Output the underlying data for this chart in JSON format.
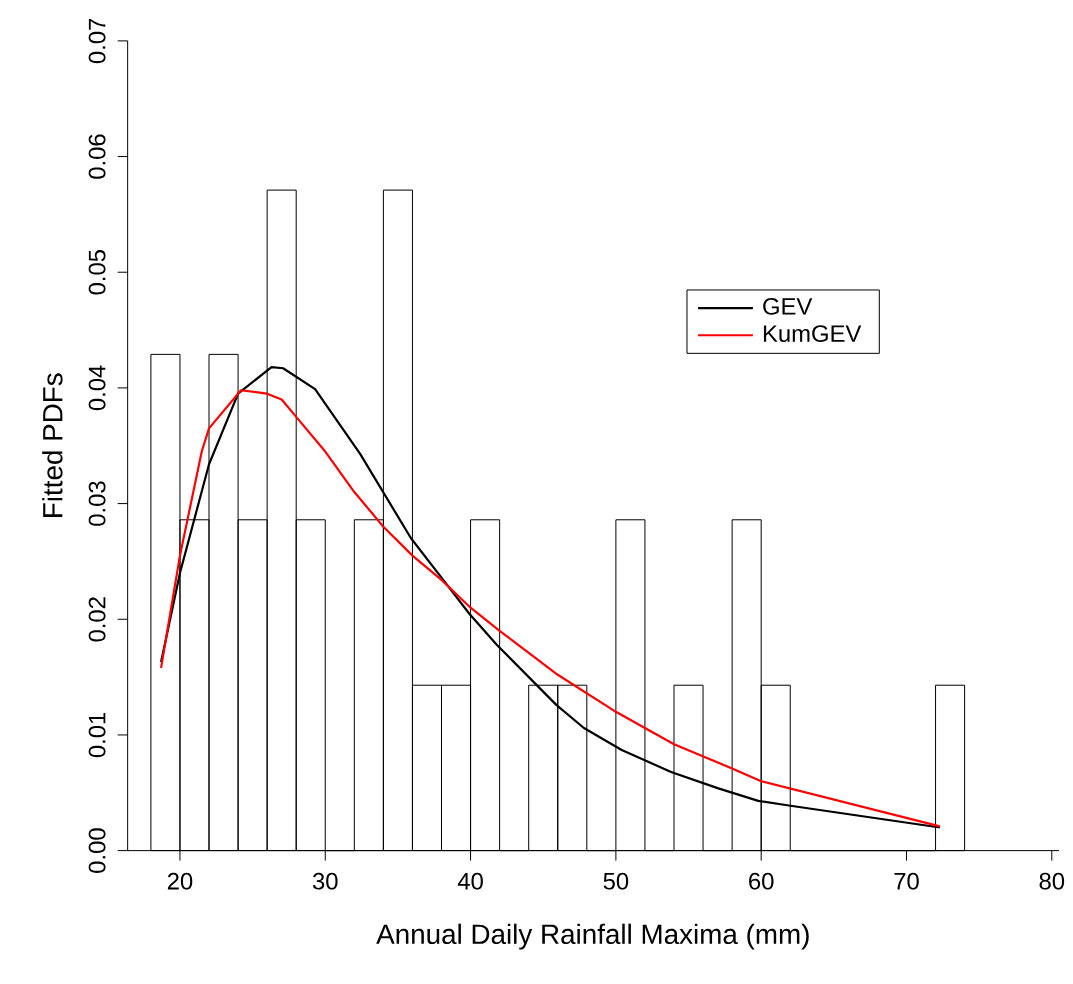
{
  "chart_data": {
    "type": "histogram",
    "xlabel": "Annual Daily Rainfall Maxima (mm)",
    "ylabel": "Fitted PDFs",
    "bins": [
      18,
      20,
      22,
      24,
      26,
      28,
      30,
      32,
      34,
      36,
      38,
      40,
      42,
      44,
      46,
      48,
      50,
      52,
      54,
      56,
      58,
      60,
      62,
      64,
      66,
      68,
      70,
      72,
      74
    ],
    "values": [
      0.0429,
      0.0286,
      0.0429,
      0.0286,
      0.0571,
      0.0286,
      0,
      0.0286,
      0.0571,
      0.0143,
      0.0143,
      0.0286,
      0,
      0.0143,
      0.0143,
      0,
      0.0286,
      0,
      0.0143,
      0,
      0.0286,
      0.0143,
      0,
      0,
      0,
      0,
      0,
      0.0143
    ],
    "series": [
      {
        "name": "GEV",
        "type": "line",
        "color": "#000000",
        "x": [
          18.7,
          20,
          22,
          24,
          26.3,
          27.1,
          29.3,
          32.4,
          35.9,
          38,
          39.9,
          41.8,
          45.9,
          47.8,
          50.4,
          53.8,
          57,
          59.8,
          61.9,
          72.3
        ],
        "values": [
          0.0163,
          0.024,
          0.0334,
          0.0395,
          0.0418,
          0.0417,
          0.0399,
          0.0343,
          0.027,
          0.0236,
          0.0205,
          0.0178,
          0.0126,
          0.0106,
          0.0087,
          0.0068,
          0.0054,
          0.0043,
          0.0039,
          0.002
        ]
      },
      {
        "name": "KumGEV",
        "type": "line",
        "color": "#ff0000",
        "x": [
          18.7,
          20,
          21.5,
          22,
          24.2,
          26,
          27,
          28,
          30,
          32,
          34,
          36,
          38,
          40,
          42,
          46,
          50,
          54,
          58,
          60,
          72.3
        ],
        "values": [
          0.0158,
          0.0255,
          0.0345,
          0.0365,
          0.0398,
          0.0395,
          0.039,
          0.0375,
          0.0345,
          0.031,
          0.028,
          0.0255,
          0.0234,
          0.021,
          0.019,
          0.0152,
          0.012,
          0.0092,
          0.0071,
          0.006,
          0.0021
        ]
      }
    ],
    "xlim": [
      16.4,
      80.5
    ],
    "ylim": [
      0,
      0.07
    ],
    "xticks": [
      20,
      30,
      40,
      50,
      60,
      70,
      80
    ],
    "yticks": [
      {
        "value": 0,
        "label": "0.00"
      },
      0.01,
      0.02,
      0.03,
      0.04,
      0.05,
      0.06,
      0.07
    ],
    "legend": "right"
  }
}
